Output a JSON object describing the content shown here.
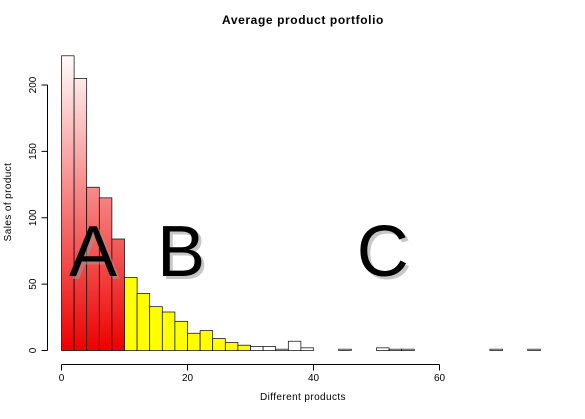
{
  "chart_data": {
    "type": "bar",
    "title": "Average product portfolio",
    "xlabel": "Different products",
    "ylabel": "Sales of product",
    "xlim": [
      0,
      75
    ],
    "ylim": [
      0,
      225
    ],
    "x_ticks": [
      0,
      20,
      40,
      60
    ],
    "y_ticks": [
      0,
      50,
      100,
      150,
      200
    ],
    "bin_width": 2,
    "bins_start": [
      0,
      2,
      4,
      6,
      8,
      10,
      12,
      14,
      16,
      18,
      20,
      22,
      24,
      26,
      28,
      30,
      32,
      34,
      36,
      38,
      40,
      42,
      44,
      46,
      48,
      50,
      52,
      54,
      56,
      58,
      60,
      62,
      64,
      66,
      68,
      70,
      72,
      74
    ],
    "values": [
      222,
      205,
      123,
      115,
      84,
      55,
      43,
      33,
      29,
      22,
      13,
      15,
      9,
      6,
      4,
      3,
      3,
      1,
      7,
      2,
      0,
      0,
      1,
      0,
      0,
      2,
      1,
      1,
      0,
      0,
      0,
      0,
      0,
      0,
      1,
      0,
      0,
      1
    ],
    "zones": [
      {
        "label": "A",
        "x_start": 0,
        "x_end": 10,
        "style": "gradient-red"
      },
      {
        "label": "B",
        "x_start": 10,
        "x_end": 30,
        "style": "yellow"
      },
      {
        "label": "C",
        "x_start": 30,
        "x_end": 76,
        "style": "white"
      }
    ],
    "colors": {
      "zone_a_top": "#ffffff",
      "zone_a_bottom": "#ee0000",
      "zone_b": "#ffff00",
      "zone_c": "#ffffff",
      "stroke": "#000000"
    },
    "grid": false,
    "legend": "none"
  }
}
